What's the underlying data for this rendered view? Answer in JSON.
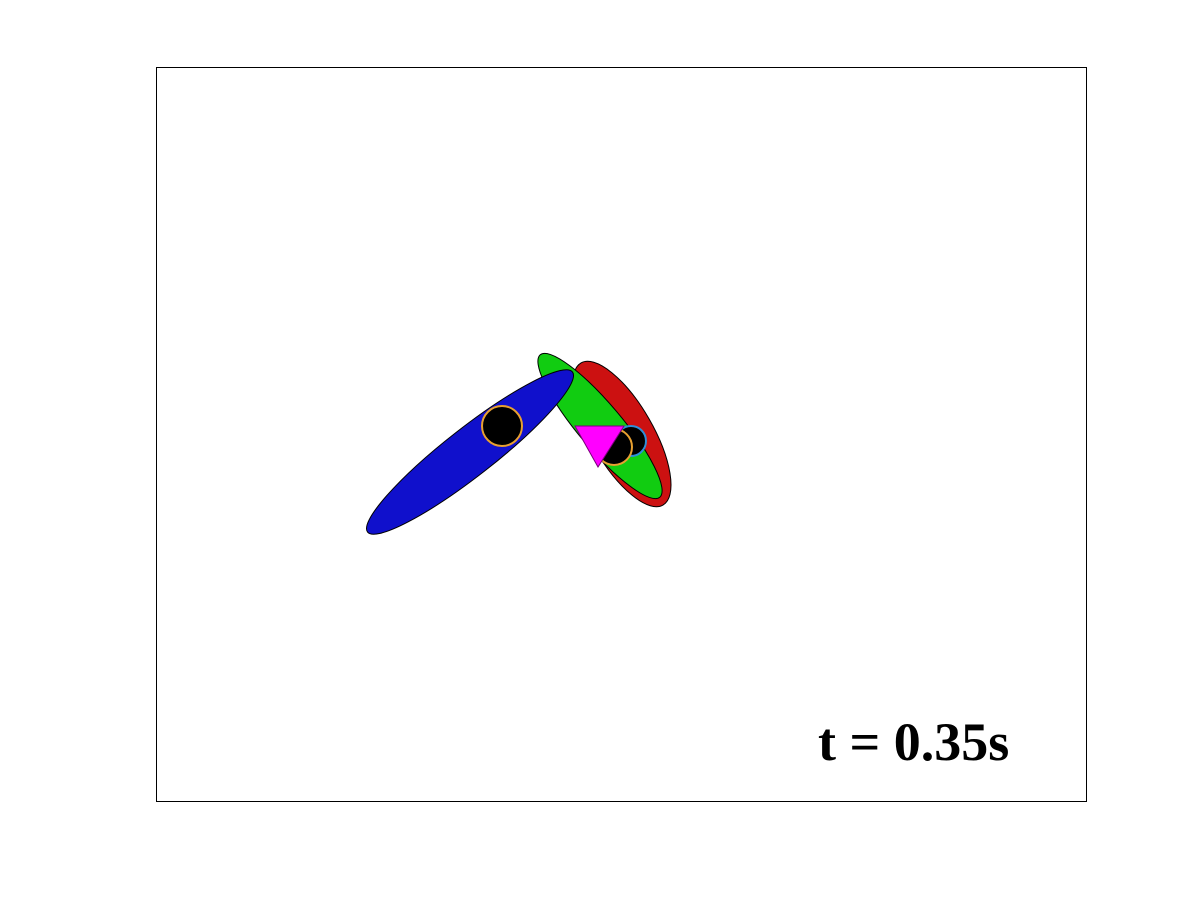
{
  "annotation": {
    "time_label": "t = 0.35s"
  },
  "colors": {
    "background": "#ffffff",
    "frame": "#000000",
    "blue_body": "#1010cc",
    "green_body": "#11cc11",
    "red_body": "#cc1111",
    "marker_fill": "#000000",
    "marker_ring": "#e8a030",
    "triangle": "#ff00ff",
    "small_ring": "#2f8fd8"
  },
  "shapes": [
    {
      "name": "red-ellipse",
      "kind": "ellipse",
      "color": "red_body"
    },
    {
      "name": "green-ellipse",
      "kind": "ellipse",
      "color": "green_body"
    },
    {
      "name": "blue-ellipse",
      "kind": "ellipse",
      "color": "blue_body"
    },
    {
      "name": "marker-blue",
      "kind": "circle-marker"
    },
    {
      "name": "marker-red",
      "kind": "circle-marker"
    },
    {
      "name": "marker-green",
      "kind": "circle-marker"
    },
    {
      "name": "magenta-triangle",
      "kind": "triangle",
      "color": "triangle"
    }
  ]
}
